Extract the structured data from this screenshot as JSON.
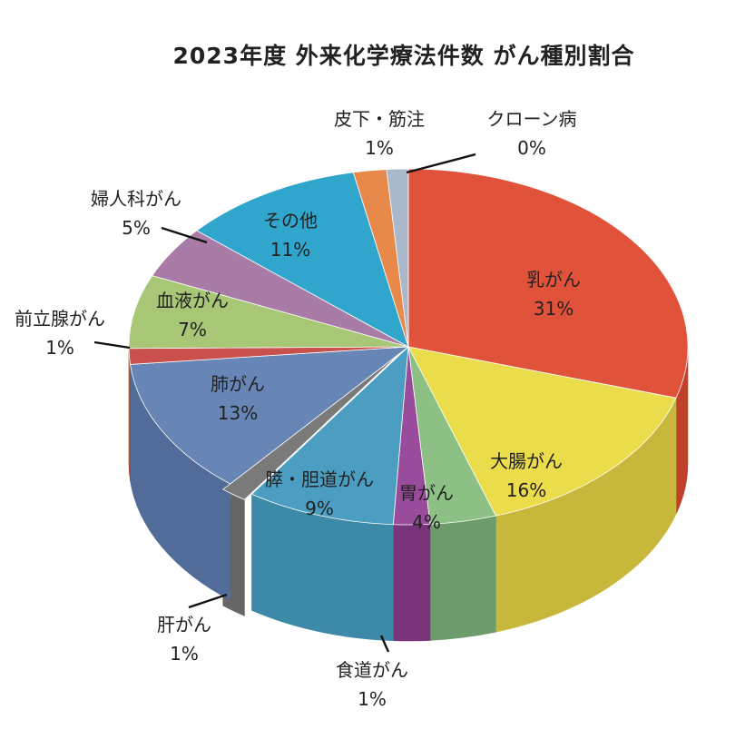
{
  "chart_data": {
    "type": "pie",
    "title": "2023年度 外来化学療法件数 がん種別割合",
    "slices": [
      {
        "label": "乳がん",
        "value": 31,
        "display": "31%",
        "color": "#e0533a",
        "side": "#c0412a"
      },
      {
        "label": "大腸がん",
        "value": 16,
        "display": "16%",
        "color": "#ebdc4b",
        "side": "#c7b83c"
      },
      {
        "label": "胃がん",
        "value": 4,
        "display": "4%",
        "color": "#8cc084",
        "side": "#6c9c6c"
      },
      {
        "label": "食道がん",
        "value": 1,
        "display": "1%",
        "color": "#9a4c9c",
        "side": "#7a347c"
      },
      {
        "label": "膵・胆道がん",
        "value": 9,
        "display": "9%",
        "color": "#4b9ec2",
        "side": "#3c8aa8"
      },
      {
        "label": "肝がん",
        "value": 1,
        "display": "1%",
        "color": "#7a7a7a",
        "side": "#666666"
      },
      {
        "label": "肺がん",
        "value": 13,
        "display": "13%",
        "color": "#6786b6",
        "side": "#516c98"
      },
      {
        "label": "前立腺がん",
        "value": 1,
        "display": "1%",
        "color": "#c9504c",
        "side": "#a84038"
      },
      {
        "label": "血液がん",
        "value": 7,
        "display": "7%",
        "color": "#a7c776",
        "side": "#8aa860"
      },
      {
        "label": "婦人科がん",
        "value": 5,
        "display": "5%",
        "color": "#a97ca8",
        "side": "#8a608a"
      },
      {
        "label": "その他",
        "value": 11,
        "display": "11%",
        "color": "#31a6cd",
        "side": "#2a8cb0"
      },
      {
        "label": "皮下・筋注",
        "value": 1,
        "display": "1%",
        "color": "#e8894c",
        "side": "#c06c38"
      },
      {
        "label": "クローン病",
        "value": 0,
        "display": "0%",
        "color": "#a9b9cb",
        "side": "#8a9aab"
      }
    ],
    "legend": "none",
    "grid": false
  },
  "edge_note": ")"
}
